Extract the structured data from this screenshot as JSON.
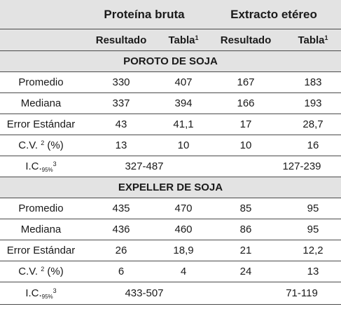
{
  "header": {
    "group1": "Proteína bruta",
    "group2": "Extracto etéreo",
    "col_resultado_1": "Resultado",
    "col_tabla_1": "Tabla",
    "col_resultado_2": "Resultado",
    "col_tabla_2": "Tabla",
    "tabla_sup": "1"
  },
  "sections": [
    {
      "title": "POROTO DE SOJA",
      "rows": [
        {
          "label": "Promedio",
          "v1": "330",
          "v2": "407",
          "v3": "167",
          "v4": "183"
        },
        {
          "label": "Mediana",
          "v1": "337",
          "v2": "394",
          "v3": "166",
          "v4": "193"
        },
        {
          "label": "Error Estándar",
          "v1": "43",
          "v2": "41,1",
          "v3": "17",
          "v4": "28,7"
        },
        {
          "label_main": "C.V.",
          "label_sup": "2",
          "label_tail": "(%)",
          "v1": "13",
          "v2": "10",
          "v3": "10",
          "v4": "16"
        }
      ],
      "ic": {
        "label_main": "I.C.",
        "label_sub": "95%",
        "label_sup": "3",
        "range1": "327-487",
        "range2": "127-239"
      }
    },
    {
      "title": "EXPELLER DE SOJA",
      "rows": [
        {
          "label": "Promedio",
          "v1": "435",
          "v2": "470",
          "v3": "85",
          "v4": "95"
        },
        {
          "label": "Mediana",
          "v1": "436",
          "v2": "460",
          "v3": "86",
          "v4": "95"
        },
        {
          "label": "Error Estándar",
          "v1": "26",
          "v2": "18,9",
          "v3": "21",
          "v4": "12,2"
        },
        {
          "label_main": "C.V.",
          "label_sup": "2",
          "label_tail": "(%)",
          "v1": "6",
          "v2": "4",
          "v3": "24",
          "v4": "13"
        }
      ],
      "ic": {
        "label_main": "I.C.",
        "label_sub": "95%",
        "label_sup": "3",
        "range1": "433-507",
        "range2": "71-119"
      }
    }
  ]
}
